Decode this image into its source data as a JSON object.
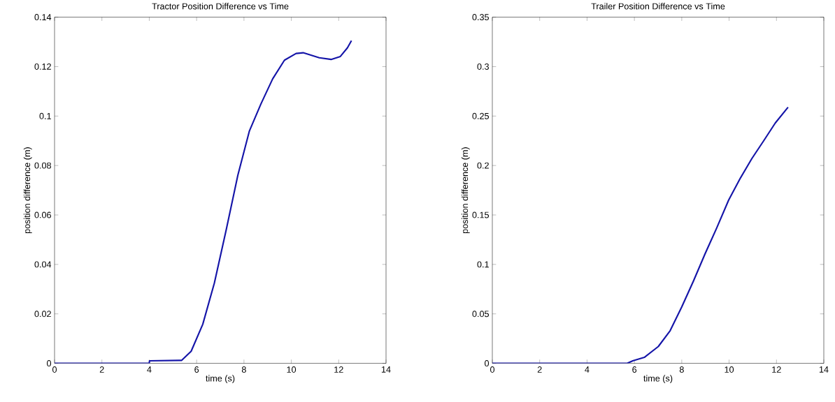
{
  "chart_data": [
    {
      "type": "line",
      "title": "Tractor Position Difference vs Time",
      "xlabel": "time (s)",
      "ylabel": "position difference (m)",
      "x": [
        0,
        4,
        4.01,
        5.37,
        5.77,
        6.26,
        6.75,
        7.25,
        7.74,
        8.23,
        8.72,
        9.21,
        9.71,
        10.2,
        10.5,
        11.18,
        11.68,
        12.07,
        12.37,
        12.54
      ],
      "series": [
        {
          "color": "#1414a8",
          "values": [
            0,
            0,
            0.001,
            0.0012,
            0.0049,
            0.0158,
            0.0325,
            0.054,
            0.076,
            0.094,
            0.105,
            0.115,
            0.1226,
            0.1253,
            0.1256,
            0.1236,
            0.1229,
            0.1241,
            0.1276,
            0.1305
          ]
        }
      ],
      "xlim": [
        0,
        14
      ],
      "ylim": [
        0,
        0.14
      ],
      "xticks": [
        0,
        2,
        4,
        6,
        8,
        10,
        12,
        14
      ],
      "yticks": [
        0,
        0.02,
        0.04,
        0.06,
        0.08,
        0.1,
        0.12,
        0.14
      ]
    },
    {
      "type": "line",
      "title": "Trailer Position Difference vs Time",
      "xlabel": "time (s)",
      "ylabel": "position difference (m)",
      "x": [
        0,
        5.7,
        5.93,
        6.42,
        7.01,
        7.51,
        8.0,
        8.49,
        8.99,
        9.48,
        9.98,
        10.47,
        10.96,
        11.46,
        11.95,
        12.49
      ],
      "series": [
        {
          "color": "#1414a8",
          "values": [
            0,
            0,
            0.0025,
            0.006,
            0.017,
            0.033,
            0.057,
            0.083,
            0.111,
            0.137,
            0.165,
            0.187,
            0.207,
            0.225,
            0.243,
            0.259
          ]
        }
      ],
      "xlim": [
        0,
        14
      ],
      "ylim": [
        0,
        0.35
      ],
      "xticks": [
        0,
        2,
        4,
        6,
        8,
        10,
        12,
        14
      ],
      "yticks": [
        0,
        0.05,
        0.1,
        0.15,
        0.2,
        0.25,
        0.3,
        0.35
      ]
    }
  ]
}
